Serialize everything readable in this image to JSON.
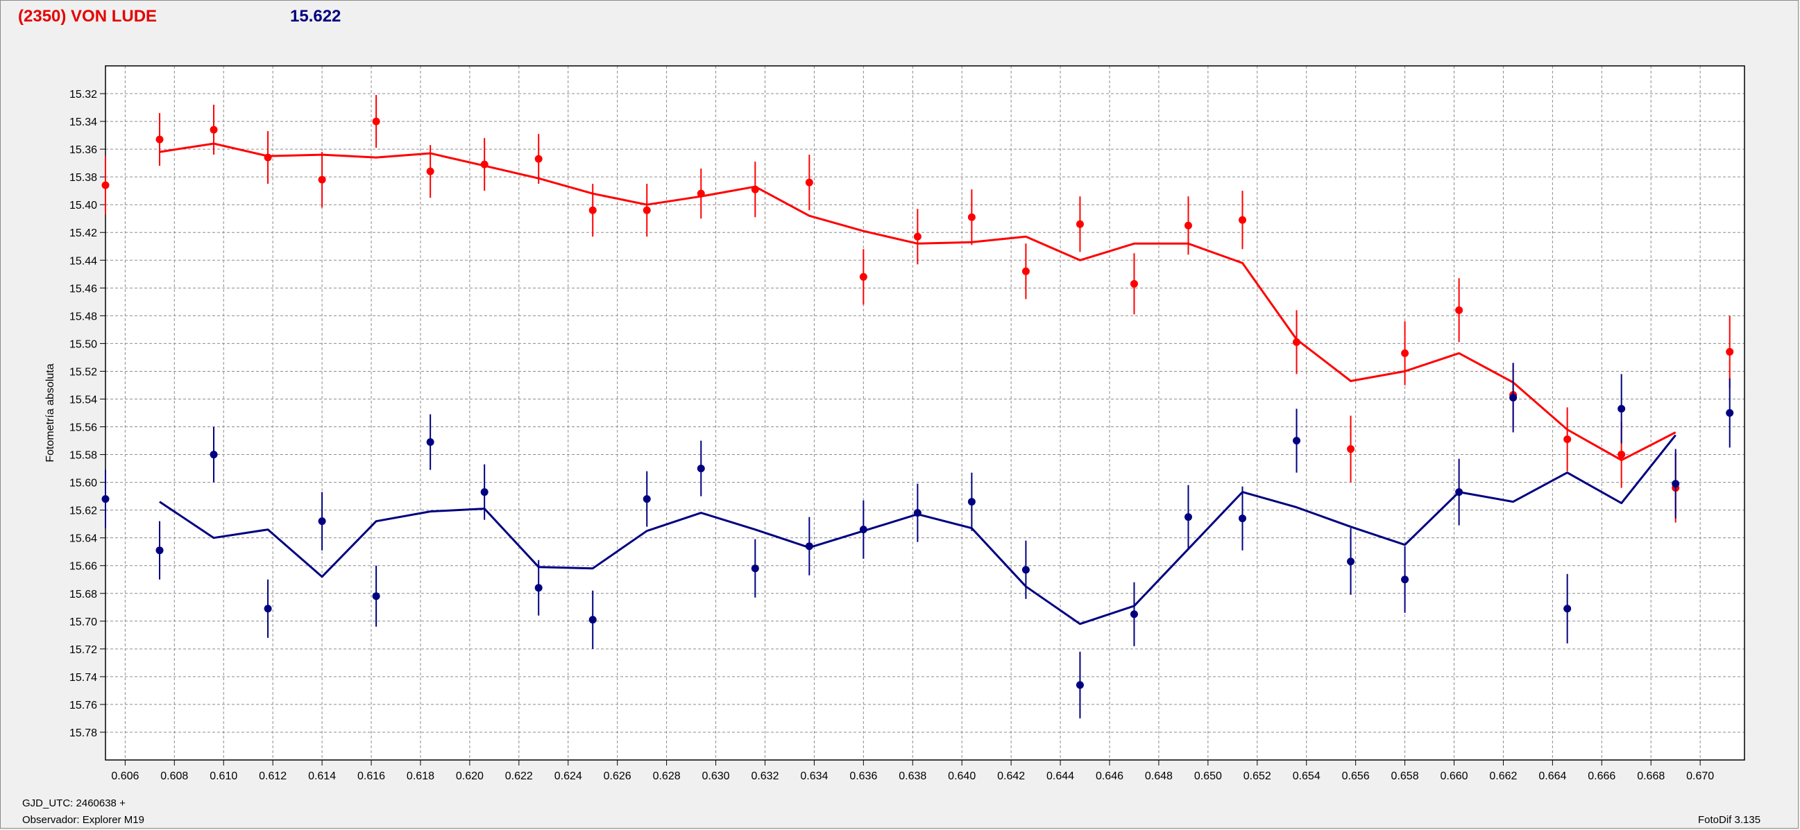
{
  "header": {
    "object_name": "(2350) VON LUDE",
    "magnitude": "15.622"
  },
  "footer": {
    "gjd_label": "GJD_UTC: 2460638 +",
    "observer_label": "Observador: Explorer M19",
    "software_label": "FotoDif 3.135"
  },
  "colors": {
    "red": "#ff0000",
    "navy": "#000080",
    "grid": "#8c8c8c",
    "plot_bg": "#ffffff"
  },
  "chart_data": {
    "type": "scatter",
    "ylabel": "Fotometría absoluta",
    "xlabel": "",
    "xlim": [
      0.6052,
      0.6718
    ],
    "ylim": [
      15.3,
      15.8
    ],
    "y_inverted": true,
    "grid": true,
    "x_ticks": [
      "0.606",
      "0.608",
      "0.610",
      "0.612",
      "0.614",
      "0.616",
      "0.618",
      "0.620",
      "0.622",
      "0.624",
      "0.626",
      "0.628",
      "0.630",
      "0.632",
      "0.634",
      "0.636",
      "0.638",
      "0.640",
      "0.642",
      "0.644",
      "0.646",
      "0.648",
      "0.650",
      "0.652",
      "0.654",
      "0.656",
      "0.658",
      "0.660",
      "0.662",
      "0.664",
      "0.666",
      "0.668",
      "0.670"
    ],
    "y_ticks": [
      "15.32",
      "15.34",
      "15.36",
      "15.38",
      "15.40",
      "15.42",
      "15.44",
      "15.46",
      "15.48",
      "15.50",
      "15.52",
      "15.54",
      "15.56",
      "15.58",
      "15.60",
      "15.62",
      "15.64",
      "15.66",
      "15.68",
      "15.70",
      "15.72",
      "15.74",
      "15.76",
      "15.78"
    ],
    "series": [
      {
        "color": "#ff0000",
        "points": [
          {
            "x": 0.6052,
            "y": 15.386,
            "err": 0.021
          },
          {
            "x": 0.6074,
            "y": 15.353,
            "err": 0.019
          },
          {
            "x": 0.6096,
            "y": 15.346,
            "err": 0.018
          },
          {
            "x": 0.6118,
            "y": 15.366,
            "err": 0.019
          },
          {
            "x": 0.614,
            "y": 15.382,
            "err": 0.02
          },
          {
            "x": 0.6162,
            "y": 15.34,
            "err": 0.019
          },
          {
            "x": 0.6184,
            "y": 15.376,
            "err": 0.019
          },
          {
            "x": 0.6206,
            "y": 15.371,
            "err": 0.019
          },
          {
            "x": 0.6228,
            "y": 15.367,
            "err": 0.018
          },
          {
            "x": 0.625,
            "y": 15.404,
            "err": 0.019
          },
          {
            "x": 0.6272,
            "y": 15.404,
            "err": 0.019
          },
          {
            "x": 0.6294,
            "y": 15.392,
            "err": 0.018
          },
          {
            "x": 0.6316,
            "y": 15.389,
            "err": 0.02
          },
          {
            "x": 0.6338,
            "y": 15.384,
            "err": 0.02
          },
          {
            "x": 0.636,
            "y": 15.452,
            "err": 0.02
          },
          {
            "x": 0.6382,
            "y": 15.423,
            "err": 0.02
          },
          {
            "x": 0.6404,
            "y": 15.409,
            "err": 0.02
          },
          {
            "x": 0.6426,
            "y": 15.448,
            "err": 0.02
          },
          {
            "x": 0.6448,
            "y": 15.414,
            "err": 0.02
          },
          {
            "x": 0.647,
            "y": 15.457,
            "err": 0.022
          },
          {
            "x": 0.6492,
            "y": 15.415,
            "err": 0.021
          },
          {
            "x": 0.6514,
            "y": 15.411,
            "err": 0.021
          },
          {
            "x": 0.6536,
            "y": 15.499,
            "err": 0.023
          },
          {
            "x": 0.6558,
            "y": 15.576,
            "err": 0.024
          },
          {
            "x": 0.658,
            "y": 15.507,
            "err": 0.023
          },
          {
            "x": 0.6602,
            "y": 15.476,
            "err": 0.023
          },
          {
            "x": 0.6624,
            "y": 15.537,
            "err": 0.023
          },
          {
            "x": 0.6646,
            "y": 15.569,
            "err": 0.023
          },
          {
            "x": 0.6668,
            "y": 15.58,
            "err": 0.024
          },
          {
            "x": 0.669,
            "y": 15.604,
            "err": 0.025
          },
          {
            "x": 0.6712,
            "y": 15.506,
            "err": 0.026
          }
        ],
        "smooth": [
          {
            "x": 0.6074,
            "y": 15.362
          },
          {
            "x": 0.6096,
            "y": 15.356
          },
          {
            "x": 0.6118,
            "y": 15.365
          },
          {
            "x": 0.614,
            "y": 15.364
          },
          {
            "x": 0.6162,
            "y": 15.366
          },
          {
            "x": 0.6184,
            "y": 15.363
          },
          {
            "x": 0.6206,
            "y": 15.372
          },
          {
            "x": 0.6228,
            "y": 15.381
          },
          {
            "x": 0.625,
            "y": 15.392
          },
          {
            "x": 0.6272,
            "y": 15.4
          },
          {
            "x": 0.6294,
            "y": 15.394
          },
          {
            "x": 0.6316,
            "y": 15.387
          },
          {
            "x": 0.6338,
            "y": 15.408
          },
          {
            "x": 0.636,
            "y": 15.419
          },
          {
            "x": 0.6382,
            "y": 15.428
          },
          {
            "x": 0.6404,
            "y": 15.427
          },
          {
            "x": 0.6426,
            "y": 15.423
          },
          {
            "x": 0.6448,
            "y": 15.44
          },
          {
            "x": 0.647,
            "y": 15.428
          },
          {
            "x": 0.6492,
            "y": 15.428
          },
          {
            "x": 0.6514,
            "y": 15.442
          },
          {
            "x": 0.6536,
            "y": 15.497
          },
          {
            "x": 0.6558,
            "y": 15.527
          },
          {
            "x": 0.658,
            "y": 15.52
          },
          {
            "x": 0.6602,
            "y": 15.507
          },
          {
            "x": 0.6624,
            "y": 15.528
          },
          {
            "x": 0.6646,
            "y": 15.562
          },
          {
            "x": 0.6668,
            "y": 15.584
          },
          {
            "x": 0.669,
            "y": 15.564
          }
        ]
      },
      {
        "color": "#000080",
        "points": [
          {
            "x": 0.6052,
            "y": 15.612,
            "err": 0.021
          },
          {
            "x": 0.6074,
            "y": 15.649,
            "err": 0.021
          },
          {
            "x": 0.6096,
            "y": 15.58,
            "err": 0.02
          },
          {
            "x": 0.6118,
            "y": 15.691,
            "err": 0.021
          },
          {
            "x": 0.614,
            "y": 15.628,
            "err": 0.021
          },
          {
            "x": 0.6162,
            "y": 15.682,
            "err": 0.022
          },
          {
            "x": 0.6184,
            "y": 15.571,
            "err": 0.02
          },
          {
            "x": 0.6206,
            "y": 15.607,
            "err": 0.02
          },
          {
            "x": 0.6228,
            "y": 15.676,
            "err": 0.02
          },
          {
            "x": 0.625,
            "y": 15.699,
            "err": 0.021
          },
          {
            "x": 0.6272,
            "y": 15.612,
            "err": 0.02
          },
          {
            "x": 0.6294,
            "y": 15.59,
            "err": 0.02
          },
          {
            "x": 0.6316,
            "y": 15.662,
            "err": 0.021
          },
          {
            "x": 0.6338,
            "y": 15.646,
            "err": 0.021
          },
          {
            "x": 0.636,
            "y": 15.634,
            "err": 0.021
          },
          {
            "x": 0.6382,
            "y": 15.622,
            "err": 0.021
          },
          {
            "x": 0.6404,
            "y": 15.614,
            "err": 0.021
          },
          {
            "x": 0.6426,
            "y": 15.663,
            "err": 0.021
          },
          {
            "x": 0.6448,
            "y": 15.746,
            "err": 0.024
          },
          {
            "x": 0.647,
            "y": 15.695,
            "err": 0.023
          },
          {
            "x": 0.6492,
            "y": 15.625,
            "err": 0.023
          },
          {
            "x": 0.6514,
            "y": 15.626,
            "err": 0.023
          },
          {
            "x": 0.6536,
            "y": 15.57,
            "err": 0.023
          },
          {
            "x": 0.6558,
            "y": 15.657,
            "err": 0.024
          },
          {
            "x": 0.658,
            "y": 15.67,
            "err": 0.024
          },
          {
            "x": 0.6602,
            "y": 15.607,
            "err": 0.024
          },
          {
            "x": 0.6624,
            "y": 15.539,
            "err": 0.025
          },
          {
            "x": 0.6646,
            "y": 15.691,
            "err": 0.025
          },
          {
            "x": 0.6668,
            "y": 15.547,
            "err": 0.025
          },
          {
            "x": 0.669,
            "y": 15.601,
            "err": 0.025
          },
          {
            "x": 0.6712,
            "y": 15.55,
            "err": 0.025
          }
        ],
        "smooth": [
          {
            "x": 0.6074,
            "y": 15.614
          },
          {
            "x": 0.6096,
            "y": 15.64
          },
          {
            "x": 0.6118,
            "y": 15.634
          },
          {
            "x": 0.614,
            "y": 15.668
          },
          {
            "x": 0.6162,
            "y": 15.628
          },
          {
            "x": 0.6184,
            "y": 15.621
          },
          {
            "x": 0.6206,
            "y": 15.619
          },
          {
            "x": 0.6228,
            "y": 15.661
          },
          {
            "x": 0.625,
            "y": 15.662
          },
          {
            "x": 0.6272,
            "y": 15.635
          },
          {
            "x": 0.6294,
            "y": 15.622
          },
          {
            "x": 0.6316,
            "y": 15.634
          },
          {
            "x": 0.6338,
            "y": 15.647
          },
          {
            "x": 0.636,
            "y": 15.635
          },
          {
            "x": 0.6382,
            "y": 15.623
          },
          {
            "x": 0.6404,
            "y": 15.633
          },
          {
            "x": 0.6426,
            "y": 15.675
          },
          {
            "x": 0.6448,
            "y": 15.702
          },
          {
            "x": 0.647,
            "y": 15.689
          },
          {
            "x": 0.6492,
            "y": 15.648
          },
          {
            "x": 0.6514,
            "y": 15.607
          },
          {
            "x": 0.6536,
            "y": 15.618
          },
          {
            "x": 0.6558,
            "y": 15.632
          },
          {
            "x": 0.658,
            "y": 15.645
          },
          {
            "x": 0.6602,
            "y": 15.607
          },
          {
            "x": 0.6624,
            "y": 15.614
          },
          {
            "x": 0.6646,
            "y": 15.593
          },
          {
            "x": 0.6668,
            "y": 15.615
          },
          {
            "x": 0.669,
            "y": 15.566
          }
        ]
      }
    ]
  }
}
